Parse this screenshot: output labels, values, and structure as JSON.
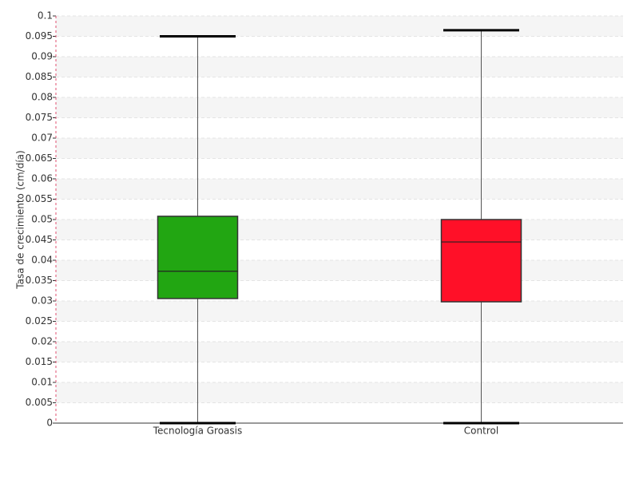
{
  "chart_data": {
    "type": "box",
    "y_label": "Tasa de crecimiento (cm/día)",
    "categories": [
      "Tecnología Groasis",
      "Control"
    ],
    "min": [
      0,
      0
    ],
    "q1": [
      0.0306,
      0.0298
    ],
    "median": [
      0.0373,
      0.0445
    ],
    "q3": [
      0.0508,
      0.05
    ],
    "max": [
      0.095,
      0.0965
    ],
    "colors": [
      "#22a612",
      "#ff1028"
    ],
    "ylim": [
      0,
      0.1
    ],
    "yticks": [
      0,
      0.005,
      0.01,
      0.015,
      0.02,
      0.025,
      0.03,
      0.035,
      0.04,
      0.045,
      0.05,
      0.055,
      0.06,
      0.065,
      0.07,
      0.075,
      0.08,
      0.085,
      0.09,
      0.095,
      0.1
    ],
    "grid": true
  }
}
